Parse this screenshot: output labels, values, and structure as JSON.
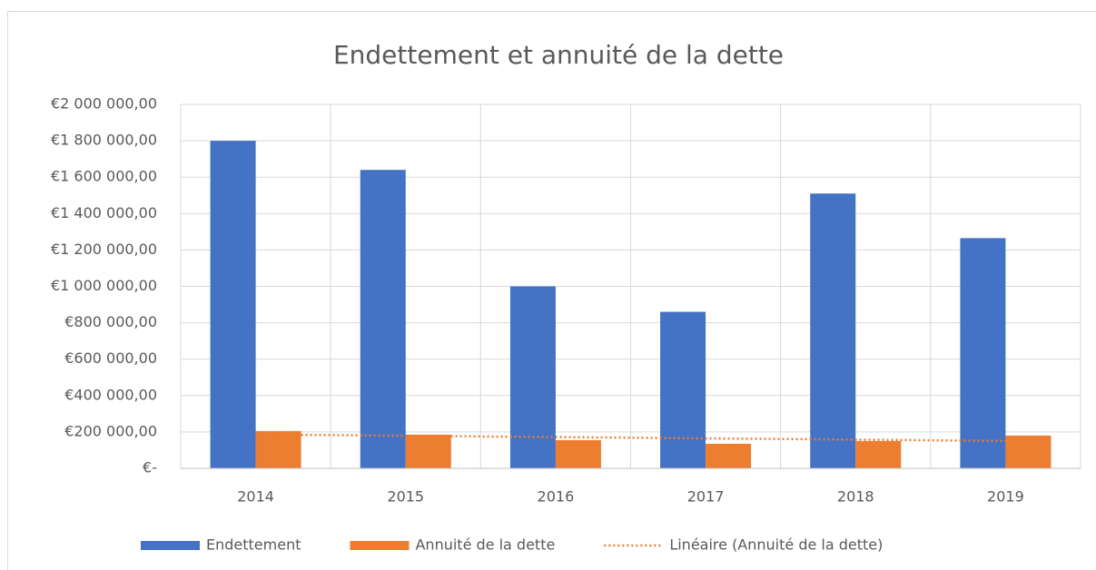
{
  "chart_data": {
    "type": "bar",
    "title": "Endettement et annuité de la dette",
    "categories": [
      "2014",
      "2015",
      "2016",
      "2017",
      "2018",
      "2019"
    ],
    "series": [
      {
        "name": "Endettement",
        "color": "#4472c4",
        "values": [
          1800000,
          1640000,
          1000000,
          860000,
          1510000,
          1265000
        ]
      },
      {
        "name": "Annuité de la dette",
        "color": "#ed7d31",
        "values": [
          205000,
          185000,
          155000,
          135000,
          150000,
          180000
        ],
        "trendline": "Linéaire (Annuité de la dette)"
      }
    ],
    "ylim": [
      0,
      2000000
    ],
    "yticks": [
      {
        "value": 0,
        "label": "€-"
      },
      {
        "value": 200000,
        "label": "€200 000,00"
      },
      {
        "value": 400000,
        "label": "€400 000,00"
      },
      {
        "value": 600000,
        "label": "€600 000,00"
      },
      {
        "value": 800000,
        "label": "€800 000,00"
      },
      {
        "value": 1000000,
        "label": "€1 000 000,00"
      },
      {
        "value": 1200000,
        "label": "€1 200 000,00"
      },
      {
        "value": 1400000,
        "label": "€1 400 000,00"
      },
      {
        "value": 1600000,
        "label": "€1 600 000,00"
      },
      {
        "value": 1800000,
        "label": "€1 800 000,00"
      },
      {
        "value": 2000000,
        "label": "€2 000 000,00"
      }
    ],
    "grid": true,
    "legend": "bottom"
  }
}
